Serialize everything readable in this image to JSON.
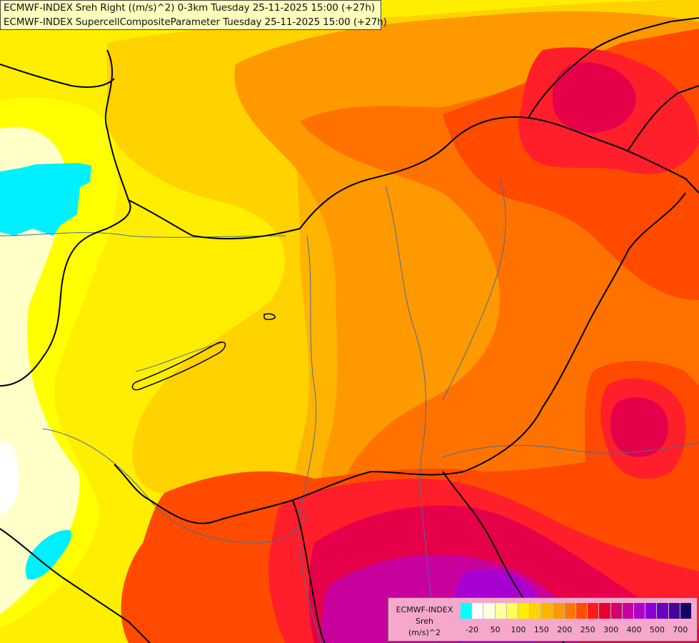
{
  "title": {
    "line1": "ECMWF-INDEX Sreh Right ((m/s)^2) 0-3km Tuesday 25-11-2025 15:00 (+27h)",
    "line2": "ECMWF-INDEX SupercellCompositeParameter Tuesday 25-11-2025 15:00 (+27h)"
  },
  "legend": {
    "name_lines": [
      "ECMWF-INDEX",
      "Sreh",
      "(m/s)^2"
    ],
    "colors": [
      "#00ffff",
      "#ffffff",
      "#ffffe0",
      "#ffffa0",
      "#ffff55",
      "#ffee00",
      "#ffd200",
      "#ffb400",
      "#ff9900",
      "#ff7700",
      "#ff4d00",
      "#ff1a1a",
      "#e60033",
      "#d4006b",
      "#c8009c",
      "#b000c8",
      "#8a00d8",
      "#6a00c0",
      "#4a0099",
      "#1a0066"
    ],
    "ticks": [
      "-20",
      "50",
      "100",
      "150",
      "200",
      "250",
      "300",
      "400",
      "500",
      "700"
    ]
  },
  "palette": {
    "base": "#ffee00",
    "pale": "#ffffc8",
    "white": "#ffffff",
    "cyan": "#00f0ff",
    "yellow": "#ffff00",
    "gold": "#ffd200",
    "light_orange": "#ffb400",
    "orange": "#ff9900",
    "dark_orange": "#ff7200",
    "orange_red": "#ff4a00",
    "red": "#ff1f2a",
    "crimson": "#e6004a",
    "magenta": "#c8009c",
    "purple": "#a800d0",
    "border": "#000000",
    "river": "#4a6a9a"
  }
}
